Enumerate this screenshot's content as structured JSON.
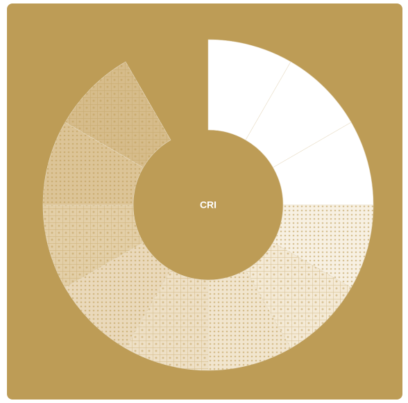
{
  "chart_data": {
    "type": "donut",
    "center_label": "CRI",
    "categories": [
      null,
      null,
      null,
      null,
      null,
      null,
      null,
      null,
      null,
      null,
      null,
      null
    ],
    "values": [
      1,
      1,
      1,
      1,
      1,
      1,
      1,
      1,
      1,
      1,
      1,
      null
    ],
    "colors": [
      "#ffffff",
      "#ffffff",
      "#ffffff",
      "#f7f0e2",
      "#f4ead6",
      "#f1e5ce",
      "#eee0c6",
      "#ead9bb",
      "#e3cfa8",
      "#dcc497",
      "#d6bc8b",
      "#bd9c56"
    ],
    "hatch": [
      false,
      false,
      false,
      true,
      true,
      true,
      true,
      true,
      true,
      true,
      true,
      false
    ]
  }
}
